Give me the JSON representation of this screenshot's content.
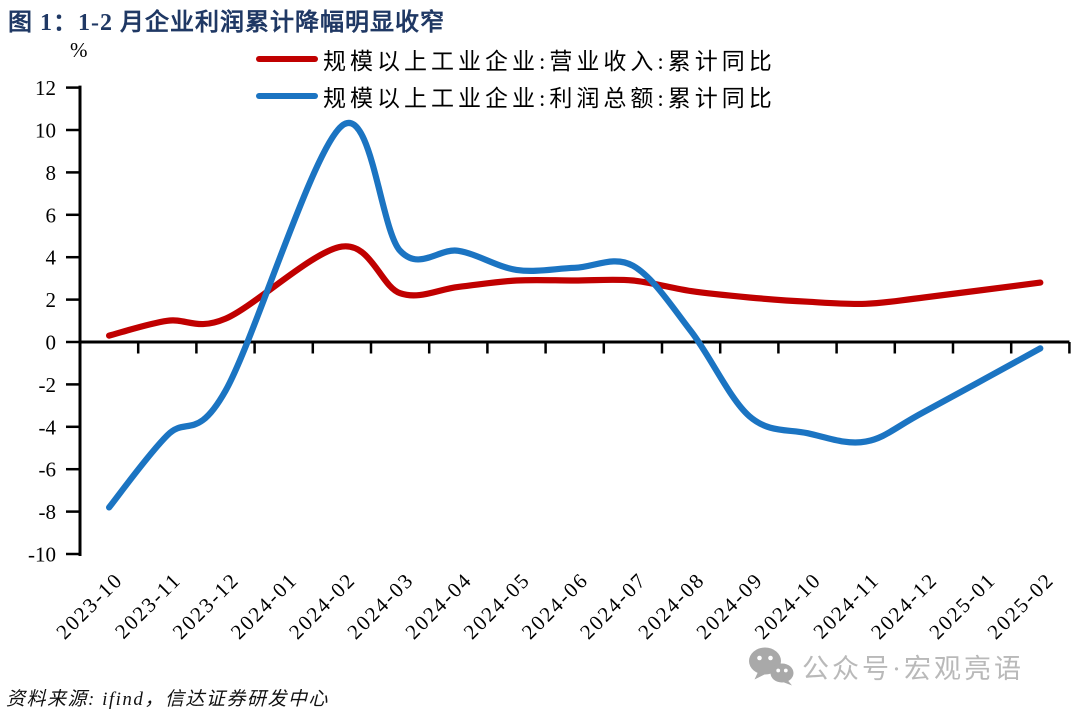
{
  "title": "图 1：1-2 月企业利润累计降幅明显收窄",
  "source": "资料来源: ifind，信达证券研发中心",
  "watermark": {
    "icon": "wechat-icon",
    "text": "公众号·宏观亮语"
  },
  "colors": {
    "title": "#1f3864",
    "axis": "#000000",
    "revenue_line": "#c00000",
    "profit_line": "#1b74c2",
    "watermark": "#b9b9b9",
    "watermark_icon": "#a9a9a9"
  },
  "chart_data": {
    "type": "line",
    "title": "图 1：1-2 月企业利润累计降幅明显收窄",
    "ylabel": "%",
    "ylim": [
      -10,
      12
    ],
    "ytick_step": 2,
    "grid": false,
    "smooth": true,
    "legend_position": "top",
    "x": [
      "2023-10",
      "2023-11",
      "2023-12",
      "2024-01",
      "2024-02",
      "2024-03",
      "2024-04",
      "2024-05",
      "2024-06",
      "2024-07",
      "2024-08",
      "2024-09",
      "2024-10",
      "2024-11",
      "2024-12",
      "2025-01",
      "2025-02"
    ],
    "series": [
      {
        "name": "规模以上工业企业:营业收入:累计同比",
        "color": "#c00000",
        "values": [
          0.3,
          1.0,
          1.1,
          null,
          4.5,
          2.3,
          2.6,
          2.9,
          2.9,
          2.9,
          2.4,
          2.1,
          1.9,
          1.8,
          2.1,
          null,
          2.8
        ]
      },
      {
        "name": "规模以上工业企业:利润总额:累计同比",
        "color": "#1b74c2",
        "values": [
          -7.8,
          -4.4,
          -2.3,
          null,
          10.2,
          4.3,
          4.3,
          3.4,
          3.5,
          3.6,
          0.5,
          -3.5,
          -4.3,
          -4.7,
          -3.3,
          null,
          -0.3
        ]
      }
    ]
  }
}
